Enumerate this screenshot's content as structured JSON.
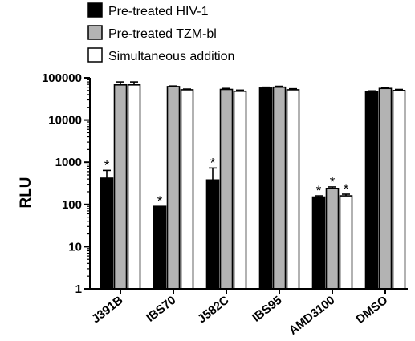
{
  "chart_data": {
    "type": "bar",
    "yscale": "log",
    "ylabel": "RLU",
    "ylim": [
      1,
      100000
    ],
    "yticks": [
      "1",
      "10",
      "100",
      "1000",
      "10000",
      "100000"
    ],
    "categories": [
      "J391B",
      "IBS70",
      "J582C",
      "IBS95",
      "AMD3100",
      "DMSO"
    ],
    "legend_position": "top-left",
    "series": [
      {
        "name": "Pre-treated HIV-1",
        "color": "#000000",
        "values": [
          420,
          90,
          380,
          57000,
          150,
          46000
        ],
        "errors": [
          220,
          0,
          350,
          3000,
          10,
          3000
        ],
        "significant": [
          true,
          true,
          true,
          false,
          true,
          false
        ]
      },
      {
        "name": "Pre-treated TZM-bl",
        "color": "#b3b3b3",
        "values": [
          68000,
          62000,
          53000,
          60000,
          240,
          56000
        ],
        "errors": [
          12000,
          2000,
          3000,
          3000,
          20,
          3000
        ],
        "significant": [
          false,
          false,
          false,
          false,
          true,
          false
        ]
      },
      {
        "name": "Simultaneous addition",
        "color": "#ffffff",
        "values": [
          68000,
          52000,
          48000,
          52000,
          160,
          50000
        ],
        "errors": [
          12000,
          2000,
          3000,
          3000,
          15,
          3000
        ],
        "significant": [
          false,
          false,
          false,
          false,
          true,
          false
        ]
      }
    ],
    "annotations": [
      {
        "text": "*",
        "series": 0,
        "category": 0
      },
      {
        "text": "*",
        "series": 0,
        "category": 1
      },
      {
        "text": "*",
        "series": 0,
        "category": 2
      },
      {
        "text": "*",
        "series": 0,
        "category": 4
      },
      {
        "text": "*",
        "series": 1,
        "category": 4
      },
      {
        "text": "*",
        "series": 2,
        "category": 4
      }
    ]
  }
}
